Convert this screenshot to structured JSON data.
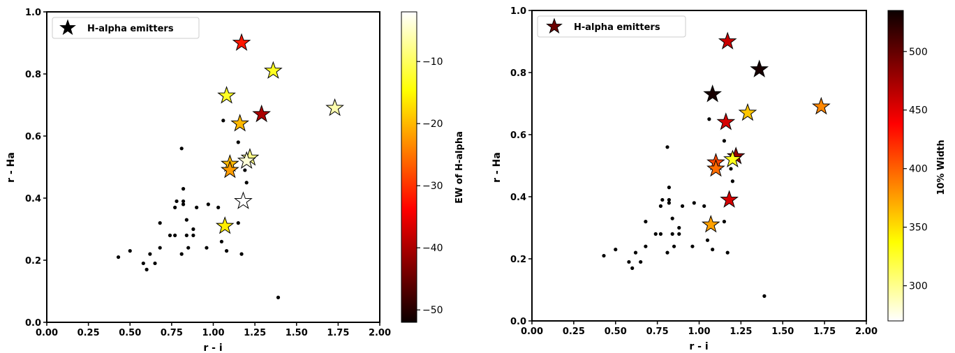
{
  "chart_data": [
    {
      "type": "scatter",
      "xlabel": "r - i",
      "ylabel": "r - Ha",
      "xlim": [
        0.0,
        2.0
      ],
      "ylim": [
        0.0,
        1.0
      ],
      "xticks": [
        "0.00",
        "0.25",
        "0.50",
        "0.75",
        "1.00",
        "1.25",
        "1.50",
        "1.75",
        "2.00"
      ],
      "yticks": [
        "0.0",
        "0.2",
        "0.4",
        "0.6",
        "0.8",
        "1.0"
      ],
      "grid": false,
      "legend": {
        "label": "H-alpha emitters",
        "placement": "top-left"
      },
      "colorbar": {
        "label": "EW of H-alpha",
        "colormap": "hot",
        "range": [
          -52,
          -2
        ],
        "ticks": [
          "−10",
          "−20",
          "−30",
          "−40",
          "−50"
        ]
      },
      "background_points": [
        {
          "x": 0.43,
          "y": 0.21
        },
        {
          "x": 0.5,
          "y": 0.23
        },
        {
          "x": 0.58,
          "y": 0.19
        },
        {
          "x": 0.6,
          "y": 0.17
        },
        {
          "x": 0.62,
          "y": 0.22
        },
        {
          "x": 0.65,
          "y": 0.19
        },
        {
          "x": 0.68,
          "y": 0.24
        },
        {
          "x": 0.68,
          "y": 0.32
        },
        {
          "x": 0.74,
          "y": 0.28
        },
        {
          "x": 0.77,
          "y": 0.28
        },
        {
          "x": 0.77,
          "y": 0.37
        },
        {
          "x": 0.78,
          "y": 0.39
        },
        {
          "x": 0.81,
          "y": 0.22
        },
        {
          "x": 0.81,
          "y": 0.56
        },
        {
          "x": 0.82,
          "y": 0.43
        },
        {
          "x": 0.82,
          "y": 0.39
        },
        {
          "x": 0.82,
          "y": 0.38
        },
        {
          "x": 0.84,
          "y": 0.33
        },
        {
          "x": 0.84,
          "y": 0.28
        },
        {
          "x": 0.85,
          "y": 0.24
        },
        {
          "x": 0.88,
          "y": 0.28
        },
        {
          "x": 0.88,
          "y": 0.3
        },
        {
          "x": 0.9,
          "y": 0.37
        },
        {
          "x": 0.96,
          "y": 0.24
        },
        {
          "x": 0.97,
          "y": 0.38
        },
        {
          "x": 1.03,
          "y": 0.37
        },
        {
          "x": 1.05,
          "y": 0.26
        },
        {
          "x": 1.06,
          "y": 0.65
        },
        {
          "x": 1.08,
          "y": 0.23
        },
        {
          "x": 1.15,
          "y": 0.58
        },
        {
          "x": 1.15,
          "y": 0.32
        },
        {
          "x": 1.17,
          "y": 0.22
        },
        {
          "x": 1.19,
          "y": 0.49
        },
        {
          "x": 1.2,
          "y": 0.45
        },
        {
          "x": 1.39,
          "y": 0.08
        }
      ],
      "emitters": [
        {
          "x": 1.17,
          "y": 0.9,
          "c": -32
        },
        {
          "x": 1.36,
          "y": 0.81,
          "c": -13
        },
        {
          "x": 1.08,
          "y": 0.73,
          "c": -13
        },
        {
          "x": 1.73,
          "y": 0.69,
          "c": -6
        },
        {
          "x": 1.29,
          "y": 0.67,
          "c": -40
        },
        {
          "x": 1.16,
          "y": 0.64,
          "c": -20
        },
        {
          "x": 1.22,
          "y": 0.53,
          "c": -8
        },
        {
          "x": 1.2,
          "y": 0.52,
          "c": -4
        },
        {
          "x": 1.1,
          "y": 0.51,
          "c": -20
        },
        {
          "x": 1.1,
          "y": 0.49,
          "c": -22
        },
        {
          "x": 1.18,
          "y": 0.39,
          "c": -2
        },
        {
          "x": 1.07,
          "y": 0.31,
          "c": -16
        }
      ]
    },
    {
      "type": "scatter",
      "xlabel": "r - i",
      "ylabel": "r - Ha",
      "xlim": [
        0.0,
        2.0
      ],
      "ylim": [
        0.0,
        1.0
      ],
      "xticks": [
        "0.00",
        "0.25",
        "0.50",
        "0.75",
        "1.00",
        "1.25",
        "1.50",
        "1.75",
        "2.00"
      ],
      "yticks": [
        "0.0",
        "0.2",
        "0.4",
        "0.6",
        "0.8",
        "1.0"
      ],
      "grid": false,
      "legend": {
        "label": "H-alpha emitters",
        "placement": "top-left"
      },
      "colorbar": {
        "label": "10% Width",
        "colormap": "hot_r",
        "range": [
          270,
          535
        ],
        "ticks": [
          "300",
          "350",
          "400",
          "450",
          "500"
        ]
      },
      "background_points": [
        {
          "x": 0.43,
          "y": 0.21
        },
        {
          "x": 0.5,
          "y": 0.23
        },
        {
          "x": 0.58,
          "y": 0.19
        },
        {
          "x": 0.6,
          "y": 0.17
        },
        {
          "x": 0.62,
          "y": 0.22
        },
        {
          "x": 0.65,
          "y": 0.19
        },
        {
          "x": 0.68,
          "y": 0.24
        },
        {
          "x": 0.68,
          "y": 0.32
        },
        {
          "x": 0.74,
          "y": 0.28
        },
        {
          "x": 0.77,
          "y": 0.28
        },
        {
          "x": 0.77,
          "y": 0.37
        },
        {
          "x": 0.78,
          "y": 0.39
        },
        {
          "x": 0.81,
          "y": 0.22
        },
        {
          "x": 0.81,
          "y": 0.56
        },
        {
          "x": 0.82,
          "y": 0.43
        },
        {
          "x": 0.82,
          "y": 0.39
        },
        {
          "x": 0.82,
          "y": 0.38
        },
        {
          "x": 0.84,
          "y": 0.33
        },
        {
          "x": 0.84,
          "y": 0.28
        },
        {
          "x": 0.85,
          "y": 0.24
        },
        {
          "x": 0.88,
          "y": 0.28
        },
        {
          "x": 0.88,
          "y": 0.3
        },
        {
          "x": 0.9,
          "y": 0.37
        },
        {
          "x": 0.96,
          "y": 0.24
        },
        {
          "x": 0.97,
          "y": 0.38
        },
        {
          "x": 1.03,
          "y": 0.37
        },
        {
          "x": 1.05,
          "y": 0.26
        },
        {
          "x": 1.06,
          "y": 0.65
        },
        {
          "x": 1.08,
          "y": 0.23
        },
        {
          "x": 1.15,
          "y": 0.58
        },
        {
          "x": 1.15,
          "y": 0.32
        },
        {
          "x": 1.17,
          "y": 0.22
        },
        {
          "x": 1.19,
          "y": 0.49
        },
        {
          "x": 1.2,
          "y": 0.45
        },
        {
          "x": 1.39,
          "y": 0.08
        }
      ],
      "emitters": [
        {
          "x": 1.17,
          "y": 0.9,
          "c": 460
        },
        {
          "x": 1.36,
          "y": 0.81,
          "c": 530
        },
        {
          "x": 1.08,
          "y": 0.73,
          "c": 530
        },
        {
          "x": 1.73,
          "y": 0.69,
          "c": 385
        },
        {
          "x": 1.29,
          "y": 0.67,
          "c": 360
        },
        {
          "x": 1.16,
          "y": 0.64,
          "c": 455
        },
        {
          "x": 1.22,
          "y": 0.53,
          "c": 480
        },
        {
          "x": 1.2,
          "y": 0.52,
          "c": 330
        },
        {
          "x": 1.1,
          "y": 0.51,
          "c": 410
        },
        {
          "x": 1.1,
          "y": 0.49,
          "c": 395
        },
        {
          "x": 1.18,
          "y": 0.39,
          "c": 455
        },
        {
          "x": 1.07,
          "y": 0.31,
          "c": 375
        }
      ]
    }
  ]
}
